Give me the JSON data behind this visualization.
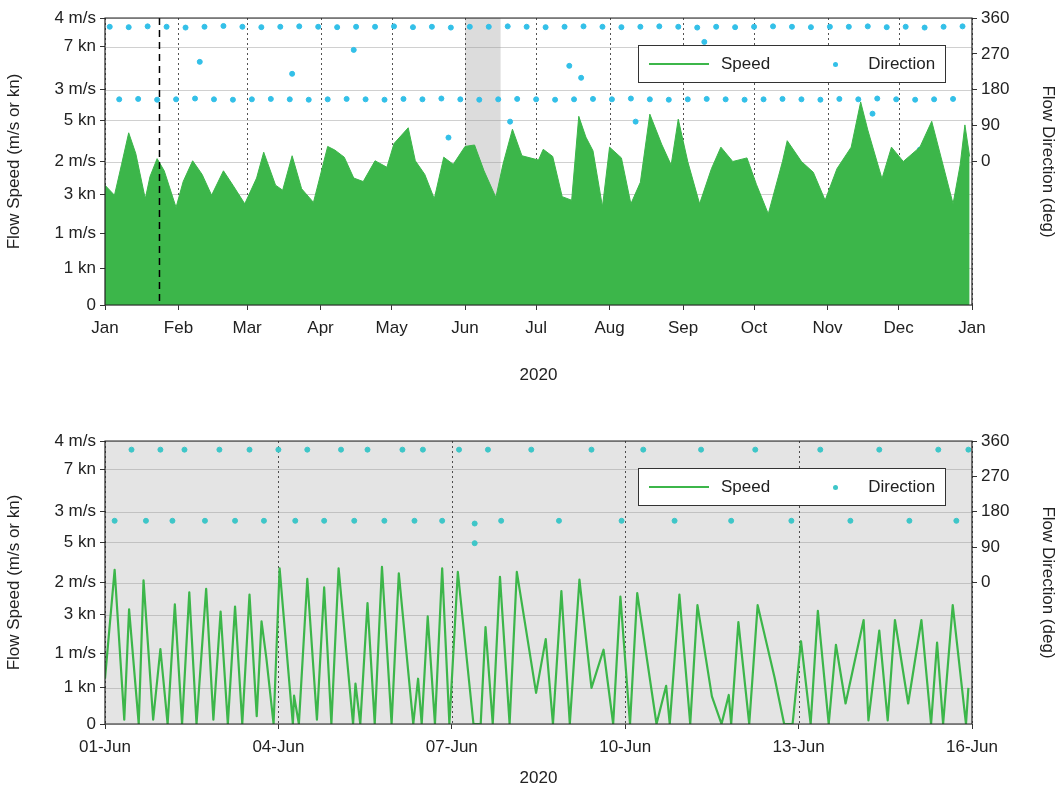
{
  "chart_data": [
    {
      "type": "area",
      "xlabel": "2020",
      "ylabel": "Flow Speed (m/s or kn)",
      "y2label": "Flow Direction (deg)",
      "xlim": [
        "2020-01-01",
        "2021-01-01"
      ],
      "xticks": [
        {
          "value": "2020-01-01",
          "label": "Jan"
        },
        {
          "value": "2020-02-01",
          "label": "Feb"
        },
        {
          "value": "2020-03-01",
          "label": "Mar"
        },
        {
          "value": "2020-04-01",
          "label": "Apr"
        },
        {
          "value": "2020-05-01",
          "label": "May"
        },
        {
          "value": "2020-06-01",
          "label": "Jun"
        },
        {
          "value": "2020-07-01",
          "label": "Jul"
        },
        {
          "value": "2020-08-01",
          "label": "Aug"
        },
        {
          "value": "2020-09-01",
          "label": "Sep"
        },
        {
          "value": "2020-10-01",
          "label": "Oct"
        },
        {
          "value": "2020-11-01",
          "label": "Nov"
        },
        {
          "value": "2020-12-01",
          "label": "Dec"
        },
        {
          "value": "2021-01-01",
          "label": "Jan"
        }
      ],
      "ylim": [
        0,
        4
      ],
      "yticks": [
        0,
        {
          "value": 1,
          "label": "1 m/s"
        },
        {
          "value": 2,
          "label": "2 m/s"
        },
        {
          "value": 3,
          "label": "3 m/s"
        },
        {
          "value": 4,
          "label": "4 m/s"
        }
      ],
      "y3lim": [
        0,
        7.775
      ],
      "y3ticks": [
        {
          "value": 1,
          "label": "1 kn"
        },
        {
          "value": 3,
          "label": "3 kn"
        },
        {
          "value": 5,
          "label": "5 kn"
        },
        {
          "value": 7,
          "label": "7 kn"
        }
      ],
      "y2lim": [
        -360,
        360
      ],
      "y2ticks": [
        0,
        90,
        180,
        270,
        360
      ],
      "grid": true,
      "legend": "top right",
      "bands": [
        {
          "axis": "x",
          "from": "2020-06-01",
          "to": "2020-06-16",
          "color": "#dcdcdc"
        }
      ],
      "ref_lines": [
        {
          "axis": "x",
          "value": "2020-01-24",
          "color": "#000000",
          "line_style": "dashed"
        }
      ],
      "series": [
        {
          "name": "Speed",
          "color": "#3cb64a",
          "x": [
            "2020-01-01",
            "2020-01-05",
            "2020-01-08",
            "2020-01-11",
            "2020-01-14",
            "2020-01-18",
            "2020-01-20",
            "2020-01-23",
            "2020-01-26",
            "2020-01-31",
            "2020-02-03",
            "2020-02-07",
            "2020-02-11",
            "2020-02-15",
            "2020-02-20",
            "2020-02-24",
            "2020-02-29",
            "2020-03-05",
            "2020-03-08",
            "2020-03-13",
            "2020-03-16",
            "2020-03-20",
            "2020-03-24",
            "2020-03-29",
            "2020-04-04",
            "2020-04-07",
            "2020-04-11",
            "2020-04-15",
            "2020-04-19",
            "2020-04-24",
            "2020-04-29",
            "2020-05-02",
            "2020-05-08",
            "2020-05-11",
            "2020-05-15",
            "2020-05-19",
            "2020-05-23",
            "2020-05-27",
            "2020-06-01",
            "2020-06-05",
            "2020-06-09",
            "2020-06-14",
            "2020-06-17",
            "2020-06-21",
            "2020-06-25",
            "2020-07-02",
            "2020-07-04",
            "2020-07-08",
            "2020-07-12",
            "2020-07-16",
            "2020-07-19",
            "2020-07-22",
            "2020-07-25",
            "2020-07-29",
            "2020-08-01",
            "2020-08-06",
            "2020-08-10",
            "2020-08-14",
            "2020-08-18",
            "2020-08-23",
            "2020-08-27",
            "2020-08-30",
            "2020-09-03",
            "2020-09-08",
            "2020-09-13",
            "2020-09-17",
            "2020-09-22",
            "2020-09-28",
            "2020-10-02",
            "2020-10-07",
            "2020-10-13",
            "2020-10-15",
            "2020-10-21",
            "2020-10-26",
            "2020-10-31",
            "2020-11-05",
            "2020-11-11",
            "2020-11-15",
            "2020-11-18",
            "2020-11-24",
            "2020-11-28",
            "2020-12-03",
            "2020-12-10",
            "2020-12-15",
            "2020-12-19",
            "2020-12-24",
            "2020-12-27",
            "2020-12-29",
            "2020-12-31"
          ],
          "values": [
            1.67,
            1.53,
            1.96,
            2.4,
            2.11,
            1.48,
            1.79,
            2.04,
            1.87,
            1.36,
            1.72,
            2.01,
            1.82,
            1.53,
            1.87,
            1.67,
            1.41,
            1.77,
            2.13,
            1.67,
            1.6,
            2.08,
            1.62,
            1.43,
            2.21,
            2.16,
            2.06,
            1.77,
            1.72,
            2.01,
            1.92,
            2.25,
            2.47,
            2.01,
            1.82,
            1.48,
            2.06,
            1.96,
            2.21,
            2.23,
            1.87,
            1.5,
            1.96,
            2.45,
            2.08,
            2.02,
            2.17,
            2.07,
            1.51,
            1.46,
            2.63,
            2.34,
            2.15,
            1.37,
            2.2,
            2.05,
            1.41,
            1.71,
            2.66,
            2.24,
            1.95,
            2.59,
            2.0,
            1.41,
            1.9,
            2.2,
            2.0,
            2.05,
            1.68,
            1.27,
            2.0,
            2.29,
            2.0,
            1.85,
            1.46,
            1.9,
            2.2,
            2.83,
            2.44,
            1.76,
            2.2,
            2.0,
            2.2,
            2.56,
            2.05,
            1.41,
            1.95,
            2.51,
            2.07
          ]
        },
        {
          "name": "Direction",
          "type": "scatter",
          "axis": "y2",
          "marker": "circle",
          "color": "#33c0e8",
          "x": [
            "2020-01-03",
            "2020-01-11",
            "2020-01-19",
            "2020-01-27",
            "2020-02-04",
            "2020-02-12",
            "2020-02-20",
            "2020-02-28",
            "2020-03-07",
            "2020-03-15",
            "2020-03-23",
            "2020-03-31",
            "2020-04-08",
            "2020-04-16",
            "2020-04-24",
            "2020-05-02",
            "2020-05-10",
            "2020-05-18",
            "2020-05-26",
            "2020-06-03",
            "2020-06-11",
            "2020-06-19",
            "2020-06-27",
            "2020-07-05",
            "2020-07-13",
            "2020-07-21",
            "2020-07-29",
            "2020-08-06",
            "2020-08-14",
            "2020-08-22",
            "2020-08-30",
            "2020-09-07",
            "2020-09-15",
            "2020-09-23",
            "2020-10-01",
            "2020-10-09",
            "2020-10-17",
            "2020-10-25",
            "2020-11-02",
            "2020-11-10",
            "2020-11-18",
            "2020-11-26",
            "2020-12-04",
            "2020-12-12",
            "2020-12-20",
            "2020-12-28",
            "2020-01-07",
            "2020-01-15",
            "2020-01-23",
            "2020-01-31",
            "2020-02-08",
            "2020-02-16",
            "2020-02-24",
            "2020-03-03",
            "2020-03-11",
            "2020-03-19",
            "2020-03-27",
            "2020-04-04",
            "2020-04-12",
            "2020-04-20",
            "2020-04-28",
            "2020-05-06",
            "2020-05-14",
            "2020-05-22",
            "2020-05-30",
            "2020-06-07",
            "2020-06-15",
            "2020-06-23",
            "2020-07-01",
            "2020-07-09",
            "2020-07-17",
            "2020-07-25",
            "2020-08-02",
            "2020-08-10",
            "2020-08-18",
            "2020-08-26",
            "2020-09-03",
            "2020-09-11",
            "2020-09-19",
            "2020-09-27",
            "2020-10-05",
            "2020-10-13",
            "2020-10-21",
            "2020-10-29",
            "2020-11-06",
            "2020-11-14",
            "2020-11-22",
            "2020-11-30",
            "2020-12-08",
            "2020-12-16",
            "2020-12-24",
            "2020-02-10",
            "2020-03-20",
            "2020-04-15",
            "2020-05-25",
            "2020-06-20",
            "2020-07-15",
            "2020-08-12",
            "2020-09-10",
            "2020-07-20",
            "2020-11-20",
            "2020-12-10"
          ],
          "values": [
            338,
            337,
            339,
            338,
            336,
            338,
            340,
            338,
            337,
            338,
            339,
            338,
            337,
            338,
            338,
            339,
            337,
            338,
            336,
            338,
            338,
            339,
            338,
            337,
            338,
            339,
            338,
            337,
            338,
            339,
            338,
            336,
            338,
            337,
            338,
            339,
            338,
            337,
            338,
            338,
            339,
            337,
            338,
            336,
            338,
            339,
            156,
            157,
            155,
            156,
            158,
            156,
            155,
            156,
            157,
            156,
            155,
            156,
            157,
            156,
            155,
            157,
            156,
            158,
            156,
            155,
            156,
            157,
            156,
            155,
            156,
            157,
            156,
            158,
            156,
            155,
            156,
            157,
            156,
            155,
            156,
            157,
            156,
            155,
            157,
            156,
            158,
            156,
            155,
            156,
            157,
            250,
            220,
            280,
            60,
            100,
            240,
            100,
            300,
            210,
            120,
            30
          ]
        }
      ]
    },
    {
      "type": "line",
      "xlabel": "2020",
      "ylabel": "Flow Speed (m/s or kn)",
      "y2label": "Flow Direction (deg)",
      "xlim": [
        "2020-06-01",
        "2020-06-16"
      ],
      "xticks": [
        {
          "value": "2020-06-01",
          "label": "01-Jun"
        },
        {
          "value": "2020-06-04",
          "label": "04-Jun"
        },
        {
          "value": "2020-06-07",
          "label": "07-Jun"
        },
        {
          "value": "2020-06-10",
          "label": "10-Jun"
        },
        {
          "value": "2020-06-13",
          "label": "13-Jun"
        },
        {
          "value": "2020-06-16",
          "label": "16-Jun"
        }
      ],
      "ylim": [
        0,
        4
      ],
      "yticks": [
        0,
        {
          "value": 1,
          "label": "1 m/s"
        },
        {
          "value": 2,
          "label": "2 m/s"
        },
        {
          "value": 3,
          "label": "3 m/s"
        },
        {
          "value": 4,
          "label": "4 m/s"
        }
      ],
      "y3lim": [
        0,
        7.775
      ],
      "y3ticks": [
        {
          "value": 1,
          "label": "1 kn"
        },
        {
          "value": 3,
          "label": "3 kn"
        },
        {
          "value": 5,
          "label": "5 kn"
        },
        {
          "value": 7,
          "label": "7 kn"
        }
      ],
      "y2lim": [
        -360,
        360
      ],
      "y2ticks": [
        0,
        90,
        180,
        270,
        360
      ],
      "grid": true,
      "legend": "top right",
      "bands": [
        {
          "axis": "x",
          "from": "2020-06-01",
          "to": "2020-06-16",
          "color": "#e4e4e4"
        }
      ],
      "series": [
        {
          "name": "Speed",
          "color": "#3cb64a",
          "x": [
            "2020-06-01T00:00",
            "2020-06-01T04:00",
            "2020-06-01T08:00",
            "2020-06-01T10:00",
            "2020-06-01T14:00",
            "2020-06-01T16:00",
            "2020-06-01T20:00",
            "2020-06-01T23:00",
            "2020-06-02T02:00",
            "2020-06-02T05:00",
            "2020-06-02T08:00",
            "2020-06-02T11:00",
            "2020-06-02T14:00",
            "2020-06-02T18:00",
            "2020-06-02T21:00",
            "2020-06-03T00:00",
            "2020-06-03T03:00",
            "2020-06-03T06:00",
            "2020-06-03T09:00",
            "2020-06-03T12:00",
            "2020-06-03T15:00",
            "2020-06-03T17:00",
            "2020-06-03T19:00",
            "2020-06-03T22:00",
            "2020-06-04T00:30",
            "2020-06-04T06:00",
            "2020-06-04T06:30",
            "2020-06-04T08:30",
            "2020-06-04T12:00",
            "2020-06-04T16:00",
            "2020-06-04T19:00",
            "2020-06-04T22:00",
            "2020-06-05T01:00",
            "2020-06-05T07:00",
            "2020-06-05T08:00",
            "2020-06-05T10:00",
            "2020-06-05T13:00",
            "2020-06-05T16:00",
            "2020-06-05T19:00",
            "2020-06-05T23:00",
            "2020-06-06T02:00",
            "2020-06-06T08:00",
            "2020-06-06T10:00",
            "2020-06-06T11:30",
            "2020-06-06T14:00",
            "2020-06-06T17:00",
            "2020-06-06T20:00",
            "2020-06-06T23:00",
            "2020-06-07T02:30",
            "2020-06-07T09:00",
            "2020-06-07T12:00",
            "2020-06-07T14:00",
            "2020-06-07T17:00",
            "2020-06-07T20:00",
            "2020-06-08T00:00",
            "2020-06-08T03:00",
            "2020-06-08T11:00",
            "2020-06-08T15:00",
            "2020-06-08T18:00",
            "2020-06-08T21:30",
            "2020-06-09T01:00",
            "2020-06-09T05:00",
            "2020-06-09T10:00",
            "2020-06-09T15:00",
            "2020-06-09T19:00",
            "2020-06-09T22:00",
            "2020-06-10T02:00",
            "2020-06-10T05:00",
            "2020-06-10T13:00",
            "2020-06-10T17:00",
            "2020-06-10T18:30",
            "2020-06-10T22:30",
            "2020-06-11T03:00",
            "2020-06-11T06:00",
            "2020-06-11T12:00",
            "2020-06-11T16:00",
            "2020-06-11T19:00",
            "2020-06-11T20:00",
            "2020-06-11T23:00",
            "2020-06-12T03:30",
            "2020-06-12T07:00",
            "2020-06-12T14:00",
            "2020-06-12T18:00",
            "2020-06-12T21:30",
            "2020-06-13T01:00",
            "2020-06-13T05:00",
            "2020-06-13T08:00",
            "2020-06-13T12:30",
            "2020-06-13T15:30",
            "2020-06-13T19:30",
            "2020-06-14T03:00",
            "2020-06-14T05:00",
            "2020-06-14T09:30",
            "2020-06-14T13:00",
            "2020-06-14T16:00",
            "2020-06-14T21:30",
            "2020-06-15T03:00",
            "2020-06-15T07:00",
            "2020-06-15T09:30",
            "2020-06-15T12:00",
            "2020-06-15T16:00",
            "2020-06-15T21:30",
            "2020-06-15T22:30"
          ],
          "values": [
            0.64,
            2.18,
            0.06,
            1.62,
            0,
            2.03,
            0.06,
            1.06,
            0,
            1.69,
            0,
            1.86,
            0,
            1.91,
            0.06,
            1.59,
            0,
            1.66,
            0,
            1.83,
            0.11,
            1.45,
            0.93,
            0,
            2.2,
            0,
            0.4,
            0,
            2.05,
            0.06,
            1.93,
            0,
            2.2,
            0,
            0.57,
            0,
            1.71,
            0,
            2.22,
            0,
            2.13,
            0,
            0.64,
            0,
            1.52,
            0,
            2.2,
            0,
            2.15,
            0,
            0,
            1.37,
            0,
            2.08,
            0,
            2.15,
            0.44,
            1.2,
            0,
            1.88,
            0,
            2.04,
            0.51,
            1.05,
            0,
            1.8,
            0,
            1.85,
            0,
            0.54,
            0,
            1.83,
            0,
            1.68,
            0.39,
            0,
            0.41,
            0,
            1.44,
            0,
            1.68,
            0.66,
            0,
            0,
            1.17,
            0,
            1.6,
            0,
            1.12,
            0.29,
            1.47,
            0.05,
            1.32,
            0.05,
            1.47,
            0.29,
            1.47,
            0,
            1.15,
            0,
            1.68,
            0,
            0.51
          ]
        },
        {
          "name": "Direction",
          "type": "scatter",
          "axis": "y2",
          "marker": "circle",
          "color": "#3ec6c8",
          "x": [
            "2020-06-01T11:00",
            "2020-06-01T23:00",
            "2020-06-02T09:00",
            "2020-06-02T23:30",
            "2020-06-03T12:00",
            "2020-06-04T00:00",
            "2020-06-04T12:00",
            "2020-06-05T02:00",
            "2020-06-05T13:00",
            "2020-06-06T03:30",
            "2020-06-06T12:00",
            "2020-06-07T03:00",
            "2020-06-07T15:00",
            "2020-06-08T09:00",
            "2020-06-09T10:00",
            "2020-06-10T07:30",
            "2020-06-11T07:30",
            "2020-06-12T06:00",
            "2020-06-13T09:00",
            "2020-06-14T09:30",
            "2020-06-15T10:00",
            "2020-06-15T22:30",
            "2020-06-01T04:00",
            "2020-06-01T17:00",
            "2020-06-02T04:00",
            "2020-06-02T17:30",
            "2020-06-03T06:00",
            "2020-06-03T18:00",
            "2020-06-04T07:00",
            "2020-06-04T19:00",
            "2020-06-05T07:30",
            "2020-06-05T20:00",
            "2020-06-06T08:30",
            "2020-06-06T20:00",
            "2020-06-07T09:30",
            "2020-06-07T20:30",
            "2020-06-08T20:30",
            "2020-06-09T22:30",
            "2020-06-10T20:30",
            "2020-06-11T20:00",
            "2020-06-12T21:00",
            "2020-06-13T21:30",
            "2020-06-14T22:00",
            "2020-06-15T17:30",
            "2020-06-07T09:30"
          ],
          "values": [
            338,
            338,
            338,
            338,
            338,
            338,
            338,
            338,
            338,
            338,
            338,
            338,
            338,
            338,
            338,
            338,
            338,
            338,
            338,
            338,
            338,
            338,
            157,
            157,
            157,
            157,
            157,
            157,
            157,
            157,
            157,
            157,
            157,
            157,
            150,
            157,
            157,
            157,
            157,
            157,
            157,
            157,
            157,
            157,
            100
          ]
        }
      ]
    }
  ]
}
